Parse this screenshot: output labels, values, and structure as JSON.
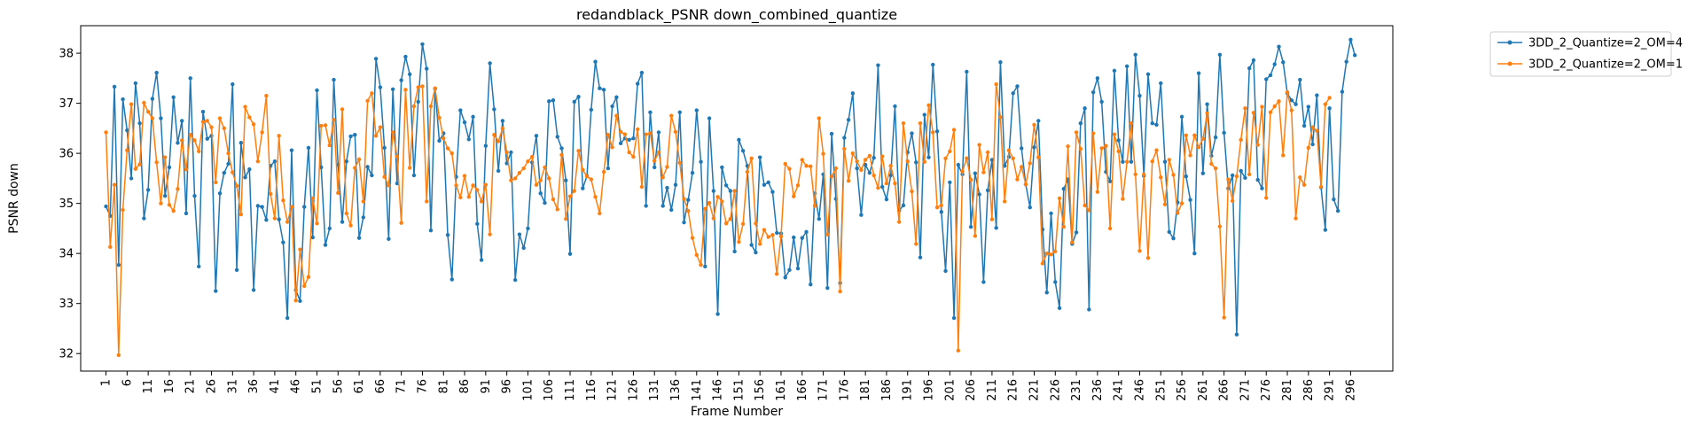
{
  "chart_data": {
    "type": "line",
    "title": "redandblack_PSNR down_combined_quantize",
    "xlabel": "Frame Number",
    "ylabel": "PSNR down",
    "xlim": [
      -5,
      306
    ],
    "ylim": [
      31.65,
      38.55
    ],
    "x_ticks": [
      1,
      6,
      11,
      16,
      21,
      26,
      31,
      36,
      41,
      46,
      51,
      56,
      61,
      66,
      71,
      76,
      81,
      86,
      91,
      96,
      101,
      106,
      111,
      116,
      121,
      126,
      131,
      136,
      141,
      146,
      151,
      156,
      161,
      166,
      171,
      176,
      181,
      186,
      191,
      196,
      201,
      206,
      211,
      216,
      221,
      226,
      231,
      236,
      241,
      246,
      251,
      256,
      261,
      266,
      271,
      276,
      281,
      286,
      291,
      296
    ],
    "y_ticks": [
      32,
      33,
      34,
      35,
      36,
      37,
      38
    ],
    "legend_position": "outside-top-right",
    "grid": false,
    "series": [
      {
        "name": "3DD_2_Quantize=2_OM=4",
        "color": "#1f77b4",
        "x_start": 1,
        "values": [
          34.94,
          34.75,
          37.33,
          33.77,
          37.08,
          36.46,
          35.5,
          37.4,
          36.6,
          34.7,
          35.27,
          37.09,
          37.61,
          36.7,
          35.15,
          35.72,
          37.12,
          36.21,
          36.65,
          34.8,
          37.5,
          35.15,
          33.74,
          36.83,
          36.29,
          36.35,
          33.25,
          35.2,
          35.61,
          35.79,
          37.38,
          33.67,
          36.21,
          35.52,
          35.68,
          33.27,
          34.95,
          34.93,
          34.67,
          35.75,
          35.84,
          34.68,
          34.22,
          32.71,
          36.06,
          33.27,
          33.05,
          34.93,
          36.11,
          34.32,
          37.26,
          35.72,
          34.17,
          34.5,
          37.47,
          35.77,
          34.63,
          35.84,
          36.34,
          36.37,
          34.31,
          34.72,
          35.73,
          35.56,
          37.89,
          37.32,
          36.11,
          34.29,
          37.28,
          35.4,
          37.46,
          37.93,
          37.58,
          35.56,
          37.03,
          38.18,
          37.69,
          34.46,
          37.29,
          36.25,
          36.4,
          34.37,
          33.48,
          35.53,
          36.86,
          36.62,
          36.28,
          36.73,
          34.59,
          33.87,
          36.15,
          37.8,
          36.88,
          35.65,
          36.65,
          35.8,
          36.02,
          33.47,
          34.38,
          34.11,
          34.5,
          35.82,
          36.35,
          35.2,
          35.01,
          37.04,
          37.06,
          36.33,
          36.1,
          35.46,
          33.99,
          37.03,
          37.13,
          35.3,
          35.55,
          36.87,
          37.83,
          37.3,
          37.27,
          35.7,
          36.94,
          37.12,
          36.2,
          36.3,
          36.27,
          36.3,
          37.39,
          37.61,
          34.95,
          36.82,
          35.72,
          36.42,
          34.95,
          35.31,
          34.87,
          35.37,
          36.82,
          34.62,
          35.07,
          35.61,
          36.86,
          35.83,
          33.74,
          36.7,
          35.25,
          32.79,
          35.72,
          35.36,
          35.25,
          34.04,
          36.27,
          36.05,
          35.75,
          34.17,
          34.02,
          35.92,
          35.37,
          35.42,
          35.23,
          34.41,
          34.4,
          33.52,
          33.67,
          34.32,
          33.7,
          34.31,
          34.43,
          33.38,
          35.2,
          34.69,
          35.58,
          33.31,
          36.39,
          35.09,
          33.41,
          36.31,
          36.67,
          37.2,
          35.7,
          34.77,
          35.77,
          35.61,
          35.91,
          37.76,
          35.33,
          35.08,
          35.56,
          36.94,
          34.86,
          34.96,
          36.02,
          36.4,
          35.82,
          33.92,
          36.77,
          35.92,
          37.77,
          36.44,
          34.83,
          33.65,
          35.42,
          32.71,
          35.77,
          35.58,
          37.63,
          34.53,
          35.6,
          35.18,
          33.43,
          35.26,
          35.87,
          34.51,
          37.82,
          35.75,
          35.93,
          37.2,
          37.34,
          36.1,
          35.38,
          34.92,
          36.12,
          36.65,
          34.48,
          33.22,
          34.8,
          33.43,
          32.91,
          35.29,
          35.48,
          34.19,
          34.42,
          36.6,
          36.9,
          32.88,
          37.22,
          37.5,
          37.03,
          35.63,
          35.44,
          37.65,
          36.26,
          35.83,
          37.74,
          35.83,
          37.97,
          37.15,
          35.55,
          37.58,
          36.6,
          36.57,
          37.4,
          35.83,
          34.43,
          34.3,
          35.02,
          36.73,
          35.54,
          35.07,
          34.0,
          37.6,
          35.6,
          36.98,
          35.95,
          36.32,
          37.97,
          36.41,
          35.3,
          35.56,
          32.38,
          35.65,
          35.51,
          37.7,
          37.86,
          35.47,
          35.3,
          37.48,
          37.56,
          37.78,
          38.13,
          37.82,
          37.2,
          37.06,
          36.98,
          37.47,
          36.55,
          36.93,
          36.18,
          37.16,
          35.32,
          34.47,
          36.9,
          35.08,
          34.85,
          37.23,
          37.83,
          38.27,
          37.96
        ]
      },
      {
        "name": "3DD_2_Quantize=2_OM=1",
        "color": "#ff7f0e",
        "x_start": 1,
        "values": [
          36.42,
          34.13,
          35.37,
          31.97,
          34.87,
          36.06,
          36.98,
          35.69,
          35.78,
          37.01,
          36.83,
          36.7,
          35.82,
          35.0,
          35.92,
          34.97,
          34.85,
          35.29,
          36.26,
          35.68,
          36.37,
          36.26,
          36.04,
          36.63,
          36.65,
          36.52,
          35.42,
          36.7,
          36.5,
          36.0,
          35.62,
          35.35,
          34.78,
          36.93,
          36.72,
          36.58,
          35.84,
          36.42,
          37.15,
          35.19,
          34.7,
          36.35,
          35.06,
          34.63,
          34.93,
          33.06,
          34.08,
          33.35,
          33.53,
          35.1,
          34.6,
          36.55,
          36.56,
          36.16,
          36.67,
          35.21,
          36.88,
          34.8,
          34.56,
          35.71,
          35.88,
          35.04,
          37.05,
          37.2,
          36.35,
          36.52,
          35.53,
          35.36,
          36.42,
          35.94,
          34.61,
          37.27,
          35.71,
          36.94,
          37.32,
          37.34,
          35.04,
          36.94,
          37.3,
          36.71,
          36.3,
          36.1,
          36.0,
          35.36,
          35.12,
          35.55,
          35.13,
          35.36,
          35.27,
          35.04,
          35.37,
          34.38,
          36.37,
          36.24,
          36.5,
          36.02,
          35.46,
          35.5,
          35.61,
          35.7,
          35.84,
          35.93,
          35.37,
          35.46,
          35.72,
          35.5,
          35.08,
          34.88,
          35.97,
          34.69,
          35.14,
          35.25,
          36.05,
          35.67,
          35.54,
          35.48,
          35.13,
          34.8,
          35.63,
          36.37,
          36.12,
          36.75,
          36.43,
          36.38,
          36.02,
          35.93,
          36.48,
          35.33,
          36.38,
          36.4,
          35.85,
          36.02,
          35.52,
          35.73,
          36.75,
          36.43,
          35.81,
          35.09,
          34.85,
          34.31,
          33.97,
          33.77,
          34.89,
          35.01,
          34.7,
          35.13,
          35.04,
          34.6,
          34.69,
          35.25,
          34.23,
          34.59,
          35.63,
          35.9,
          34.6,
          34.19,
          34.47,
          34.33,
          34.37,
          33.59,
          34.34,
          35.79,
          35.69,
          35.14,
          35.36,
          35.87,
          35.75,
          35.74,
          34.95,
          36.7,
          35.99,
          34.38,
          35.54,
          35.7,
          33.24,
          36.09,
          35.45,
          36.0,
          35.84,
          35.67,
          35.87,
          35.95,
          35.56,
          35.31,
          35.94,
          35.4,
          35.75,
          35.4,
          34.63,
          36.6,
          35.84,
          35.24,
          34.19,
          36.6,
          35.83,
          36.96,
          36.42,
          34.92,
          34.96,
          35.9,
          36.04,
          36.47,
          32.06,
          35.64,
          35.9,
          35.47,
          34.35,
          36.17,
          35.62,
          36.02,
          34.68,
          37.38,
          36.72,
          35.04,
          36.06,
          35.9,
          35.48,
          35.73,
          35.38,
          35.8,
          36.57,
          35.92,
          33.8,
          34.0,
          33.98,
          34.04,
          35.1,
          34.53,
          36.14,
          34.22,
          36.42,
          36.09,
          34.96,
          34.86,
          36.4,
          35.23,
          36.1,
          36.15,
          34.5,
          36.38,
          36.04,
          35.09,
          35.83,
          36.6,
          35.58,
          34.05,
          35.58,
          33.91,
          35.84,
          36.06,
          35.52,
          34.98,
          35.87,
          35.57,
          34.81,
          35.0,
          36.36,
          35.96,
          36.36,
          36.12,
          36.29,
          36.8,
          35.79,
          35.7,
          34.54,
          32.72,
          35.48,
          35.05,
          35.54,
          36.27,
          36.9,
          35.58,
          36.81,
          36.17,
          36.93,
          35.11,
          36.82,
          36.94,
          37.04,
          35.96,
          37.22,
          36.86,
          34.7,
          35.52,
          35.37,
          36.11,
          36.52,
          36.45,
          35.33,
          36.98,
          37.11
        ]
      }
    ]
  }
}
